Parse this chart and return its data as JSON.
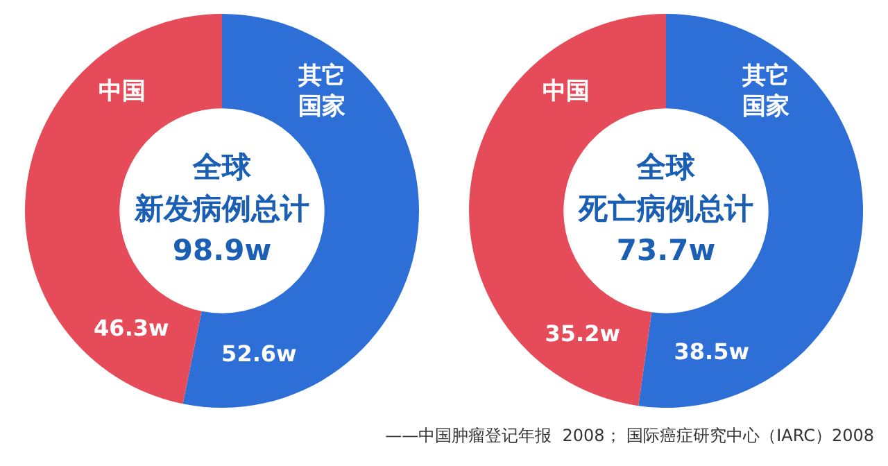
{
  "chart_data": [
    {
      "type": "donut",
      "categories": [
        "其它国家",
        "中国"
      ],
      "values": [
        52.6,
        46.3
      ],
      "colors": [
        "#2d6fd6",
        "#e54b58"
      ],
      "value_labels": [
        "52.6w",
        "46.3w"
      ],
      "annotations": [
        "全球",
        "新发病例总计",
        "98.9w"
      ],
      "legend": false
    },
    {
      "type": "donut",
      "categories": [
        "其它国家",
        "中国"
      ],
      "values": [
        38.5,
        35.2
      ],
      "colors": [
        "#2d6fd6",
        "#e54b58"
      ],
      "value_labels": [
        "38.5w",
        "35.2w"
      ],
      "annotations": [
        "全球",
        "死亡病例总计",
        "73.7w",
        "——中国肿瘤登记年报  2008； 国际癌症研究中心（IARC）2008"
      ],
      "legend": false
    }
  ]
}
